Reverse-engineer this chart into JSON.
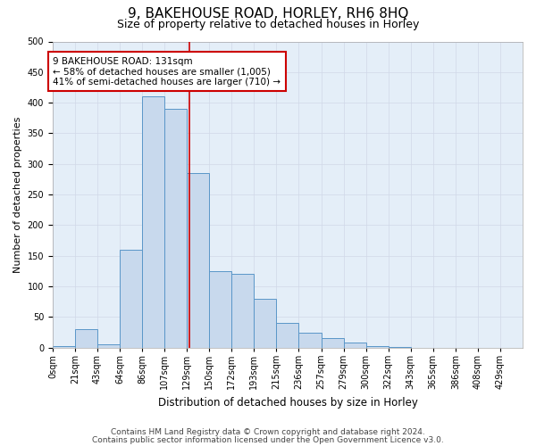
{
  "title": "9, BAKEHOUSE ROAD, HORLEY, RH6 8HQ",
  "subtitle": "Size of property relative to detached houses in Horley",
  "xlabel": "Distribution of detached houses by size in Horley",
  "ylabel": "Number of detached properties",
  "footer_line1": "Contains HM Land Registry data © Crown copyright and database right 2024.",
  "footer_line2": "Contains public sector information licensed under the Open Government Licence v3.0.",
  "bar_labels": [
    "0sqm",
    "21sqm",
    "43sqm",
    "64sqm",
    "86sqm",
    "107sqm",
    "129sqm",
    "150sqm",
    "172sqm",
    "193sqm",
    "215sqm",
    "236sqm",
    "257sqm",
    "279sqm",
    "300sqm",
    "322sqm",
    "343sqm",
    "365sqm",
    "386sqm",
    "408sqm",
    "429sqm"
  ],
  "bar_values": [
    2,
    30,
    5,
    160,
    410,
    390,
    285,
    125,
    120,
    80,
    40,
    25,
    15,
    8,
    2,
    1,
    0,
    0,
    0,
    0,
    0
  ],
  "bar_color": "#c8d9ed",
  "bar_edge_color": "#5a96c8",
  "grid_color": "#d0d8e8",
  "background_color": "#e4eef8",
  "annotation_line1": "9 BAKEHOUSE ROAD: 131sqm",
  "annotation_line2": "← 58% of detached houses are smaller (1,005)",
  "annotation_line3": "41% of semi-detached houses are larger (710) →",
  "annotation_box_color": "#ffffff",
  "annotation_box_edge_color": "#cc0000",
  "vline_color": "#cc0000",
  "vline_bar_index": 6,
  "ylim": [
    0,
    500
  ],
  "n_bars": 21,
  "bin_width": 21.5,
  "title_fontsize": 11,
  "subtitle_fontsize": 9,
  "xlabel_fontsize": 8.5,
  "ylabel_fontsize": 8,
  "tick_fontsize": 7,
  "annotation_fontsize": 7.5,
  "footer_fontsize": 6.5,
  "yticks": [
    0,
    50,
    100,
    150,
    200,
    250,
    300,
    350,
    400,
    450,
    500
  ]
}
